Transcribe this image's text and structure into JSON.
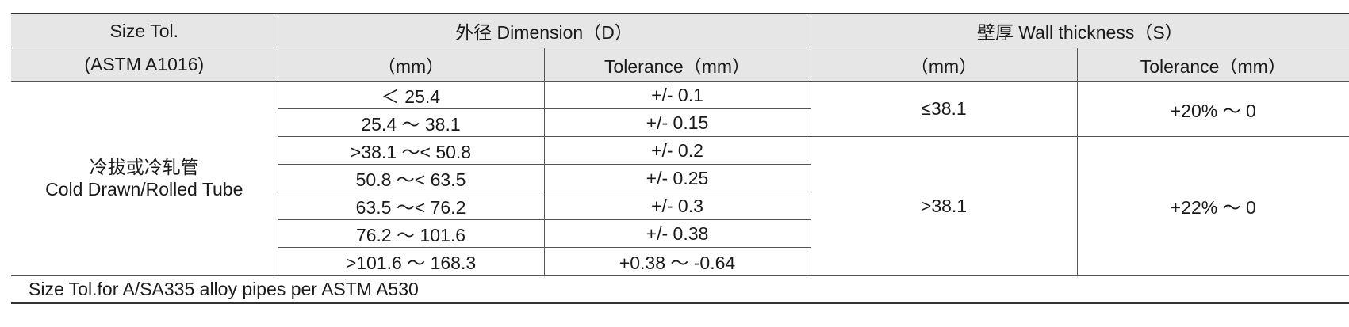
{
  "header": {
    "size_tol": "Size Tol.",
    "standard": "(ASTM A1016)",
    "dimension": "外径 Dimension（D）",
    "wall_thickness": "壁厚 Wall thickness（S）",
    "dim_mm": "（mm）",
    "dim_tolerance": "Tolerance（mm）",
    "wall_mm": "（mm）",
    "wall_tolerance": "Tolerance（mm）"
  },
  "category": {
    "label_cn": "冷拔或冷轧管",
    "label_en": "Cold Drawn/Rolled Tube"
  },
  "rows": [
    {
      "od": "＜ 25.4",
      "od_tol": "+/- 0.1"
    },
    {
      "od": "25.4 ～ 38.1",
      "od_tol": "+/- 0.15"
    },
    {
      "od": ">38.1 ～< 50.8",
      "od_tol": "+/- 0.2"
    },
    {
      "od": "50.8 ～< 63.5",
      "od_tol": "+/- 0.25"
    },
    {
      "od": "63.5 ～< 76.2",
      "od_tol": "+/- 0.3"
    },
    {
      "od": "76.2 ～ 101.6",
      "od_tol": "+/- 0.38"
    },
    {
      "od": ">101.6 ～ 168.3",
      "od_tol": "+0.38 ～ -0.64"
    }
  ],
  "wall_groups": [
    {
      "wt": "≤38.1",
      "wt_tol": "+20% ～ 0"
    },
    {
      "wt": ">38.1",
      "wt_tol": "+22% ～ 0"
    }
  ],
  "footnote": "Size Tol.for A/SA335 alloy pipes per ASTM A530"
}
